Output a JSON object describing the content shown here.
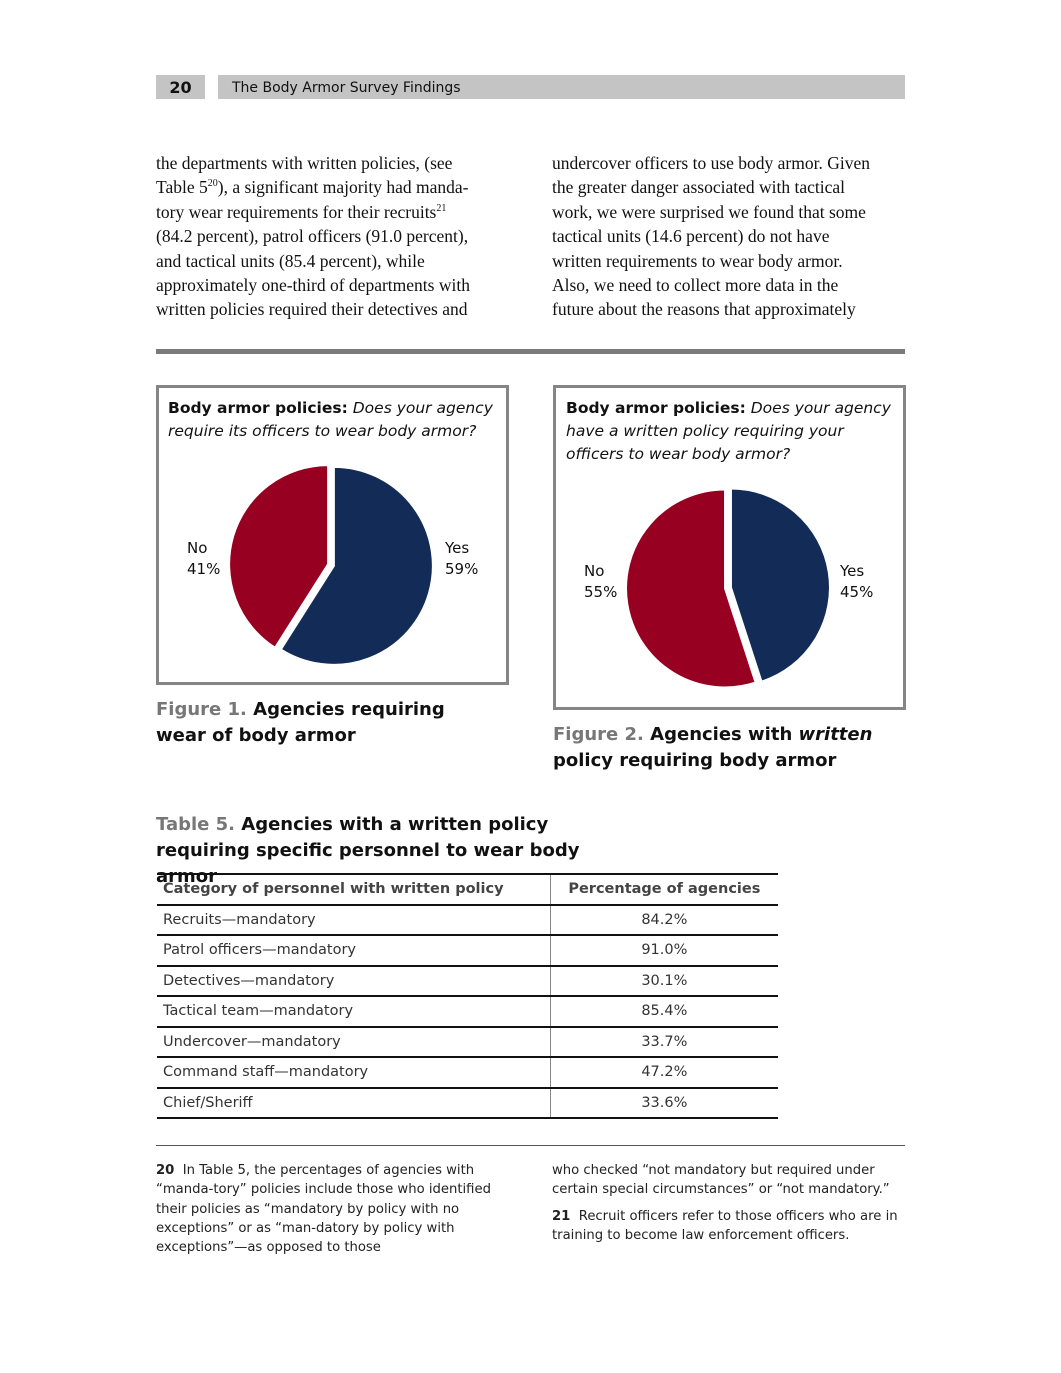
{
  "header": {
    "page_number": "20",
    "title": "The Body Armor Survey Findings"
  },
  "body": {
    "left_lines": [
      [
        {
          "text": "the departments with written policies, (see"
        }
      ],
      [
        {
          "text": "Table 5"
        },
        {
          "sup": "20"
        },
        {
          "text": "), a significant majority had manda-"
        }
      ],
      [
        {
          "text": "tory wear requirements for their recruits"
        },
        {
          "sup": "21"
        }
      ],
      [
        {
          "text": "(84.2 percent), patrol officers (91.0 percent),"
        }
      ],
      [
        {
          "text": "and tactical units (85.4 percent), while"
        }
      ],
      [
        {
          "text": "approximately one-third of departments with"
        }
      ],
      [
        {
          "text": "written policies required their detectives and"
        }
      ]
    ],
    "right_lines": [
      [
        {
          "text": "undercover officers to use body armor. Given"
        }
      ],
      [
        {
          "text": "the greater danger associated with tactical"
        }
      ],
      [
        {
          "text": "work, we were surprised we found that some"
        }
      ],
      [
        {
          "text": "tactical units (14.6 percent) do not have"
        }
      ],
      [
        {
          "text": "written requirements to wear body armor."
        }
      ],
      [
        {
          "text": "Also, we need to collect more data in the"
        }
      ],
      [
        {
          "text": "future about the reasons that approximately"
        }
      ]
    ]
  },
  "chart_data": [
    {
      "type": "pie",
      "title": "Body armor policies:",
      "subtitle": "Does your agency require its officers to wear body armor?",
      "categories": [
        "Yes",
        "No"
      ],
      "values": [
        59,
        41
      ],
      "value_labels": [
        "59%",
        "41%"
      ],
      "colors": [
        "#132c57",
        "#970020"
      ]
    },
    {
      "type": "pie",
      "title": "Body armor policies:",
      "subtitle": "Does your agency have a written policy requiring your officers to wear body armor?",
      "categories": [
        "Yes",
        "No"
      ],
      "values": [
        45,
        55
      ],
      "value_labels": [
        "45%",
        "55%"
      ],
      "colors": [
        "#132c57",
        "#970020"
      ]
    }
  ],
  "figures": [
    {
      "label": "Figure 1.",
      "caption": "Agencies requiring wear of body armor"
    },
    {
      "label": "Figure 2.",
      "caption_parts": [
        "Agencies with ",
        "written",
        " policy requiring body armor"
      ]
    }
  ],
  "table": {
    "label": "Table 5.",
    "caption": "Agencies with a written policy requiring specific personnel to wear body armor",
    "header": [
      "Category of personnel with written policy",
      "Percentage of agencies"
    ],
    "rows": [
      [
        "Recruits—mandatory",
        "84.2%"
      ],
      [
        "Patrol officers—mandatory",
        "91.0%"
      ],
      [
        "Detectives—mandatory",
        "30.1%"
      ],
      [
        "Tactical team—mandatory",
        "85.4%"
      ],
      [
        "Undercover—mandatory",
        "33.7%"
      ],
      [
        "Command staff—mandatory",
        "47.2%"
      ],
      [
        "Chief/Sheriff",
        "33.6%"
      ]
    ]
  },
  "footnotes": [
    {
      "number": "20",
      "text": "In Table 5, the percentages of agencies with “manda-tory” policies include those who identified their policies as “mandatory by policy with no exceptions” or as “man-datory by policy with exceptions”—as opposed to those",
      "continued": "who checked “not mandatory but required under certain special circumstances” or “not mandatory.”"
    },
    {
      "number": "21",
      "text": "Recruit officers refer to those officers who are in training to become law enforcement officers."
    }
  ]
}
